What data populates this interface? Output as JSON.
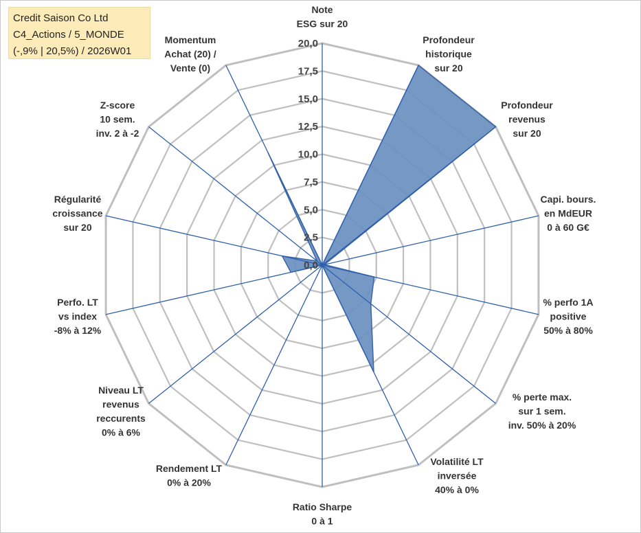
{
  "title_box": {
    "line1": "Credit Saison Co Ltd",
    "line2": "C4_Actions / 5_MONDE",
    "line3": "(-,9% | 20,5%) / 2026W01",
    "background": "#fdebb9"
  },
  "chart_data": {
    "type": "radar",
    "rmin": 0,
    "rmax": 20,
    "rings": 8,
    "grid": true,
    "ticks": [
      "0,0",
      "2,5",
      "5,0",
      "7,5",
      "10,0",
      "12,5",
      "15,0",
      "17,5",
      "20,0"
    ],
    "categories": [
      [
        "Note",
        "ESG sur 20"
      ],
      [
        "Profondeur",
        "historique",
        "sur 20"
      ],
      [
        "Profondeur",
        "revenus",
        "sur 20"
      ],
      [
        "Capi. bours.",
        "en MdEUR",
        "0 à 60 G€"
      ],
      [
        "% perfo 1A",
        "positive",
        "50% à 80%"
      ],
      [
        "% perte max.",
        "sur 1 sem.",
        "inv. 50% à 20%"
      ],
      [
        "Volatilité LT",
        "inversée",
        "40% à 0%"
      ],
      [
        "Ratio Sharpe",
        "0 à 1"
      ],
      [
        "Rendement LT",
        "0% à 20%"
      ],
      [
        "Niveau LT",
        "revenus",
        "reccurents",
        "0% à 6%"
      ],
      [
        "Perfo. LT",
        "vs index",
        "-8% à 12%"
      ],
      [
        "Régularité",
        "croissance",
        "sur 20"
      ],
      [
        "Z-score",
        "10 sem.",
        "inv. 2 à -2"
      ],
      [
        "Momentum",
        "Achat (20) /",
        "Vente (0)"
      ]
    ],
    "values": [
      0,
      20,
      20,
      0.2,
      4.8,
      5.6,
      10.7,
      0,
      0,
      0,
      2.9,
      3.7,
      0.6,
      11.3
    ],
    "colors": {
      "fill": "#6a8fbf",
      "stroke": "#3a64a8",
      "grid": "#bfbfbf",
      "spokes": "#2e5fae"
    }
  }
}
